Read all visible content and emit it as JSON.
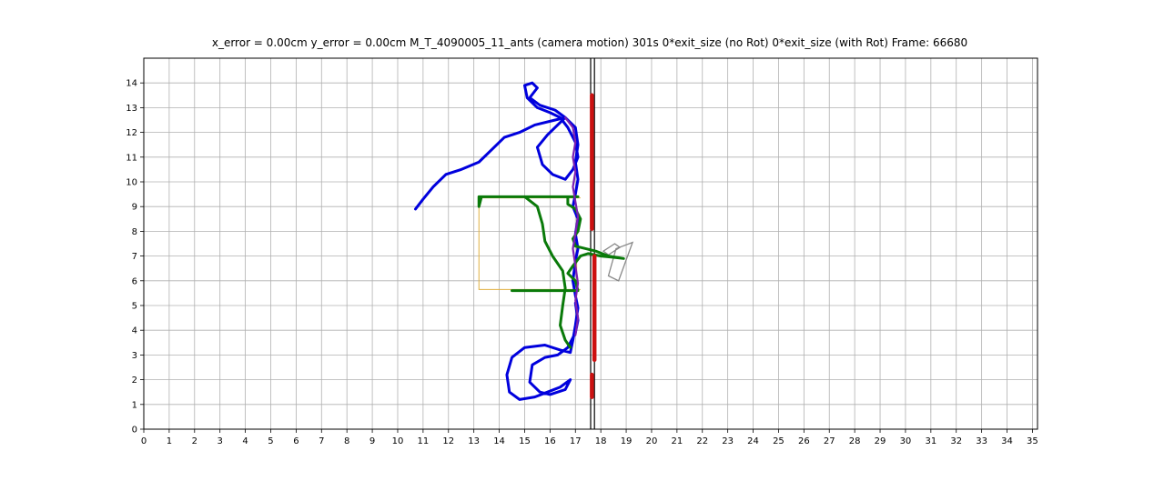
{
  "chart_data": {
    "type": "line",
    "title": "x_error = 0.00cm   y_error = 0.00cm     M_T_4090005_11_ants (camera motion)      301s   0*exit_size  (no Rot)   0*exit_size  (with Rot)      Frame:    66680",
    "xlim": [
      0,
      35.2
    ],
    "ylim": [
      0,
      15.0
    ],
    "xticks": [
      0,
      1,
      2,
      3,
      4,
      5,
      6,
      7,
      8,
      9,
      10,
      11,
      12,
      13,
      14,
      15,
      16,
      17,
      18,
      19,
      20,
      21,
      22,
      23,
      24,
      25,
      26,
      27,
      28,
      29,
      30,
      31,
      32,
      33,
      34,
      35
    ],
    "yticks": [
      0,
      1,
      2,
      3,
      4,
      5,
      6,
      7,
      8,
      9,
      10,
      11,
      12,
      13,
      14
    ],
    "grid": true,
    "colors": {
      "blue_track": "#0000dd",
      "green_track": "#0a7a0a",
      "red_markers": "#cc1111",
      "purple_overlap": "#7a1fb0",
      "yellow_frame": "#e0b040",
      "gray_shape": "#888888",
      "divider_line": "#000000"
    },
    "series": [
      {
        "color": "blue_track",
        "points": [
          [
            10.7,
            8.9
          ],
          [
            11.0,
            9.3
          ],
          [
            11.4,
            9.8
          ],
          [
            11.9,
            10.3
          ],
          [
            12.5,
            10.5
          ],
          [
            13.2,
            10.8
          ],
          [
            13.7,
            11.3
          ],
          [
            14.2,
            11.8
          ],
          [
            14.8,
            12.0
          ],
          [
            15.4,
            12.3
          ],
          [
            16.2,
            12.5
          ],
          [
            16.6,
            12.6
          ],
          [
            16.3,
            12.3
          ],
          [
            15.9,
            11.9
          ],
          [
            15.5,
            11.4
          ],
          [
            15.7,
            10.7
          ],
          [
            16.1,
            10.3
          ],
          [
            16.6,
            10.1
          ],
          [
            16.9,
            10.5
          ],
          [
            17.1,
            11.0
          ],
          [
            17.0,
            11.6
          ],
          [
            16.7,
            12.2
          ],
          [
            16.4,
            12.6
          ],
          [
            16.0,
            12.8
          ],
          [
            15.5,
            13.0
          ],
          [
            15.1,
            13.4
          ],
          [
            15.0,
            13.9
          ],
          [
            15.3,
            14.0
          ],
          [
            15.5,
            13.8
          ],
          [
            15.2,
            13.4
          ],
          [
            15.6,
            13.1
          ],
          [
            16.2,
            12.9
          ],
          [
            16.6,
            12.6
          ],
          [
            17.0,
            12.2
          ],
          [
            17.1,
            11.5
          ],
          [
            17.0,
            10.8
          ],
          [
            17.1,
            10.1
          ],
          [
            17.0,
            9.5
          ],
          [
            16.9,
            9.0
          ],
          [
            17.1,
            8.5
          ],
          [
            17.0,
            7.9
          ],
          [
            17.1,
            7.3
          ],
          [
            17.0,
            6.8
          ],
          [
            16.9,
            6.0
          ],
          [
            17.0,
            5.4
          ],
          [
            17.1,
            4.9
          ],
          [
            17.0,
            4.2
          ],
          [
            16.9,
            3.6
          ],
          [
            16.8,
            3.1
          ],
          [
            16.4,
            3.2
          ],
          [
            15.8,
            3.4
          ],
          [
            15.0,
            3.3
          ],
          [
            14.5,
            2.9
          ],
          [
            14.3,
            2.2
          ],
          [
            14.4,
            1.5
          ],
          [
            14.8,
            1.2
          ],
          [
            15.4,
            1.3
          ],
          [
            15.9,
            1.5
          ],
          [
            16.4,
            1.7
          ],
          [
            16.8,
            2.0
          ],
          [
            16.6,
            1.6
          ],
          [
            16.0,
            1.4
          ],
          [
            15.6,
            1.5
          ],
          [
            15.2,
            1.9
          ],
          [
            15.3,
            2.6
          ],
          [
            15.8,
            2.9
          ],
          [
            16.3,
            3.0
          ],
          [
            16.7,
            3.3
          ],
          [
            17.0,
            3.9
          ],
          [
            17.1,
            4.4
          ],
          [
            17.0,
            5.1
          ]
        ]
      },
      {
        "color": "green_track",
        "points": [
          [
            14.5,
            5.6
          ],
          [
            15.3,
            5.6
          ],
          [
            16.2,
            5.6
          ],
          [
            17.1,
            5.6
          ],
          [
            17.0,
            6.0
          ],
          [
            16.7,
            6.3
          ],
          [
            16.9,
            6.6
          ],
          [
            17.2,
            7.0
          ],
          [
            17.5,
            7.1
          ],
          [
            18.0,
            7.0
          ],
          [
            18.5,
            6.95
          ],
          [
            18.9,
            6.9
          ],
          [
            18.3,
            7.0
          ],
          [
            17.8,
            7.2
          ],
          [
            17.4,
            7.3
          ],
          [
            17.0,
            7.4
          ],
          [
            16.9,
            7.7
          ],
          [
            17.1,
            8.0
          ],
          [
            17.2,
            8.5
          ],
          [
            17.0,
            8.9
          ],
          [
            16.7,
            9.1
          ],
          [
            16.7,
            9.4
          ],
          [
            17.1,
            9.4
          ],
          [
            16.4,
            9.4
          ],
          [
            15.6,
            9.4
          ],
          [
            14.8,
            9.4
          ],
          [
            14.0,
            9.4
          ],
          [
            13.3,
            9.4
          ],
          [
            13.2,
            9.0
          ],
          [
            13.2,
            9.4
          ],
          [
            15.0,
            9.4
          ],
          [
            15.5,
            9.0
          ],
          [
            15.7,
            8.3
          ],
          [
            15.8,
            7.6
          ],
          [
            16.1,
            7.0
          ],
          [
            16.5,
            6.4
          ],
          [
            16.6,
            5.7
          ],
          [
            16.5,
            5.0
          ],
          [
            16.4,
            4.2
          ],
          [
            16.6,
            3.6
          ],
          [
            16.8,
            3.3
          ]
        ]
      },
      {
        "color": "purple_overlap",
        "points": [
          [
            16.6,
            12.6
          ],
          [
            16.9,
            12.2
          ],
          [
            17.0,
            11.6
          ],
          [
            16.9,
            11.0
          ],
          [
            17.0,
            10.4
          ],
          [
            16.9,
            9.8
          ],
          [
            17.0,
            9.2
          ],
          [
            17.1,
            8.6
          ],
          [
            17.0,
            7.9
          ],
          [
            16.9,
            7.3
          ],
          [
            17.0,
            6.6
          ],
          [
            17.1,
            5.9
          ],
          [
            17.0,
            5.2
          ],
          [
            17.1,
            4.5
          ],
          [
            17.0,
            3.8
          ]
        ]
      }
    ],
    "red_markers": [
      {
        "x": 17.65,
        "y_from": 8.1,
        "y_to": 13.5
      },
      {
        "x": 17.75,
        "y_from": 2.8,
        "y_to": 7.0
      },
      {
        "x": 17.65,
        "y_from": 1.3,
        "y_to": 2.2
      }
    ],
    "annotations": {
      "divider_lines_x": [
        17.6,
        17.75
      ],
      "yellow_frame": {
        "x_from": 13.2,
        "x_to": 17.2,
        "y_from": 5.65,
        "y_to": 9.35
      },
      "yellow_inner_line": {
        "x": 17.05,
        "y_from": 6.0,
        "y_to": 8.5
      },
      "gray_rect_corners": [
        [
          18.1,
          7.2
        ],
        [
          18.55,
          7.5
        ],
        [
          18.75,
          7.35
        ],
        [
          18.3,
          7.05
        ]
      ],
      "gray_rect2_corners": [
        [
          18.6,
          7.3
        ],
        [
          19.25,
          7.55
        ],
        [
          18.7,
          6.0
        ],
        [
          18.3,
          6.2
        ]
      ]
    }
  }
}
